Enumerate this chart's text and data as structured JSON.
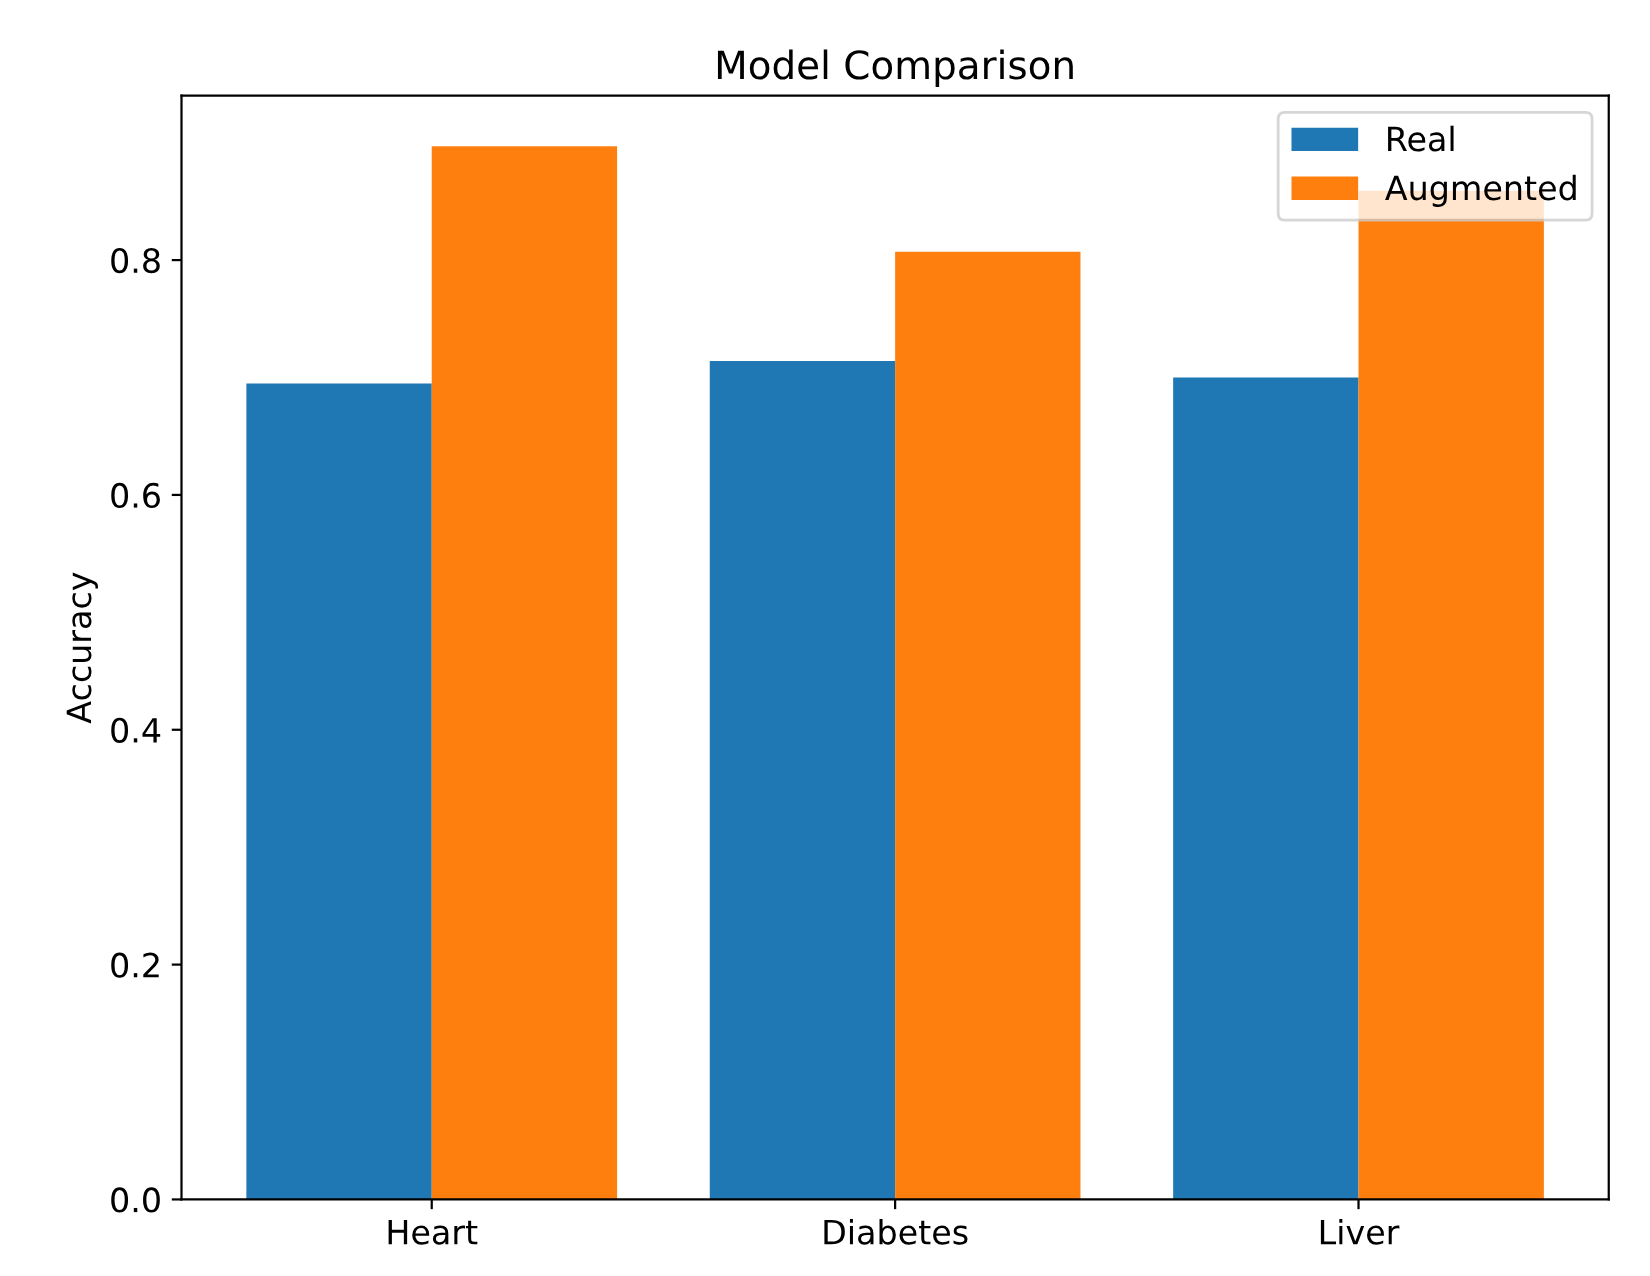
{
  "chart_data": {
    "type": "bar",
    "title": "Model Comparison",
    "ylabel": "Accuracy",
    "categories": [
      "Heart",
      "Diabetes",
      "Liver"
    ],
    "series": [
      {
        "name": "Real",
        "color": "#1f77b4",
        "values": [
          0.695,
          0.714,
          0.7
        ]
      },
      {
        "name": "Augmented",
        "color": "#ff7f0e",
        "values": [
          0.897,
          0.807,
          0.859
        ]
      }
    ],
    "ylim": [
      0,
      0.94
    ],
    "yticks": [
      {
        "value": 0,
        "label": "0.0"
      },
      0.2,
      0.4,
      0.6,
      0.8
    ],
    "grid": false,
    "legend": "top right"
  }
}
